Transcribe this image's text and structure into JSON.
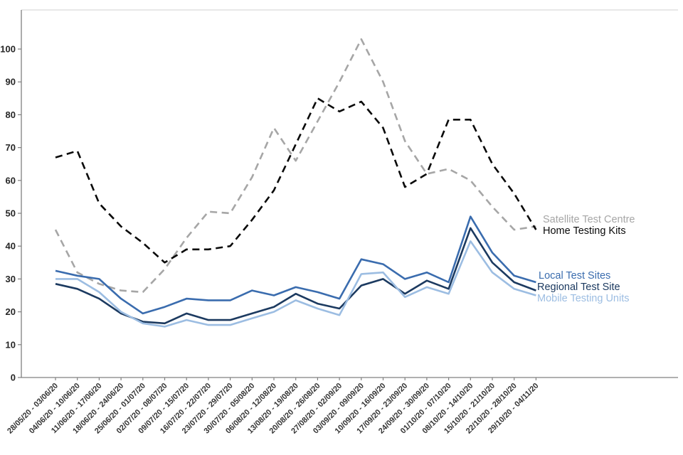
{
  "chart_data": {
    "type": "line",
    "title": "",
    "xlabel": "",
    "ylabel": "",
    "ylim": [
      0,
      108
    ],
    "y_ticks": [
      0,
      10,
      20,
      30,
      40,
      50,
      60,
      70,
      80,
      90,
      100
    ],
    "grid": false,
    "legend_position": "right-of-line-ends",
    "x_tick_labels": [
      "28/05/20 - 03/06/20",
      "04/06/20 - 10/06/20",
      "11/06/20 - 17/06/20",
      "18/06/20 - 24/06/20",
      "25/06/20 - 01/07/20",
      "02/07/20 - 08/07/20",
      "09/07/20 - 15/07/20",
      "16/07/20 - 22/07/20",
      "23/07/20 - 29/07/20",
      "30/07/20 - 05/08/20",
      "06/08/20 - 12/08/20",
      "13/08/20 - 19/08/20",
      "20/08/20 - 26/08/20",
      "27/08/20 - 02/09/20",
      "03/09/20 - 09/09/20",
      "10/09/20 - 16/09/20",
      "17/09/20 - 23/09/20",
      "24/09/20 - 30/09/20",
      "01/10/20 - 07/10/20",
      "08/10/20 - 14/10/20",
      "15/10/20 - 21/10/20",
      "22/10/20 - 28/10/20",
      "29/10/20 - 04/11/20"
    ],
    "series": [
      {
        "name": "Satellite Test Centre",
        "color": "#a6a6a6",
        "style": "dashed",
        "values": [
          45,
          32,
          28.5,
          26.5,
          26,
          33,
          42.5,
          50.5,
          50,
          61,
          76,
          66,
          78,
          90,
          103,
          90,
          72,
          62,
          63.5,
          60,
          52,
          45,
          46
        ]
      },
      {
        "name": "Home Testing Kits",
        "color": "#0a0a0a",
        "style": "dashed",
        "values": [
          67,
          69,
          53,
          46,
          41,
          35,
          39,
          39,
          40,
          48,
          57,
          71,
          85,
          81,
          84,
          76,
          58,
          62,
          78.5,
          78.5,
          65,
          56,
          45
        ]
      },
      {
        "name": "Local Test Sites",
        "color": "#3a6cae",
        "style": "solid",
        "values": [
          32.5,
          31,
          30,
          24,
          19.5,
          21.5,
          24,
          23.5,
          23.5,
          26.5,
          25,
          27.5,
          26,
          24,
          36,
          34.5,
          30,
          32,
          29,
          49,
          38,
          31,
          29
        ]
      },
      {
        "name": "Regional Test Site",
        "color": "#1c3a60",
        "style": "solid",
        "values": [
          28.5,
          27,
          24,
          19.5,
          17,
          16.5,
          19.5,
          17.5,
          17.5,
          19.5,
          21.5,
          25.5,
          22.5,
          21,
          28,
          30,
          25.5,
          29.5,
          27,
          45.5,
          35,
          29,
          26.5
        ]
      },
      {
        "name": "Mobile Testing Units",
        "color": "#9cbde2",
        "style": "solid",
        "values": [
          30,
          30,
          26,
          20,
          16.5,
          15.5,
          17.5,
          16,
          16,
          18,
          20,
          23.5,
          21,
          19,
          31.5,
          32,
          24.5,
          27.5,
          25.5,
          41.5,
          32,
          27,
          25
        ]
      }
    ]
  },
  "axes": {
    "axis_color": "#808080",
    "top_rule_color": "#d9d9d9",
    "tick_text_color": "#262626"
  }
}
